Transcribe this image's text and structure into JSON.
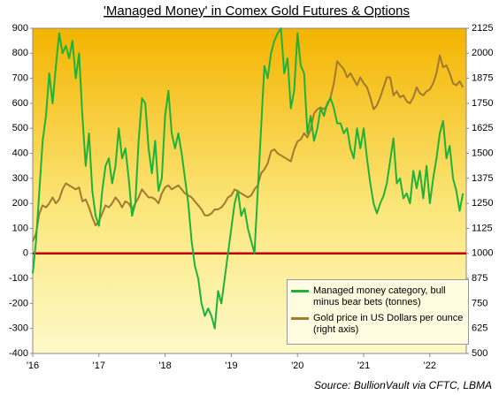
{
  "chart_data": {
    "type": "line",
    "title": "'Managed Money' in Comex Gold Futures & Options",
    "source": "Source: BullionVault via CFTC, LBMA",
    "x": [
      2016,
      2016.05,
      2016.1,
      2016.15,
      2016.2,
      2016.25,
      2016.3,
      2016.35,
      2016.4,
      2016.45,
      2016.5,
      2016.55,
      2016.6,
      2016.65,
      2016.7,
      2016.75,
      2016.8,
      2016.85,
      2016.9,
      2016.95,
      2017,
      2017.05,
      2017.1,
      2017.15,
      2017.2,
      2017.25,
      2017.3,
      2017.35,
      2017.4,
      2017.45,
      2017.5,
      2017.55,
      2017.6,
      2017.65,
      2017.7,
      2017.75,
      2017.8,
      2017.85,
      2017.9,
      2017.95,
      2018,
      2018.05,
      2018.1,
      2018.15,
      2018.2,
      2018.25,
      2018.3,
      2018.35,
      2018.4,
      2018.45,
      2018.5,
      2018.55,
      2018.6,
      2018.65,
      2018.7,
      2018.75,
      2018.8,
      2018.85,
      2018.9,
      2018.95,
      2019,
      2019.05,
      2019.1,
      2019.15,
      2019.2,
      2019.25,
      2019.3,
      2019.35,
      2019.4,
      2019.45,
      2019.5,
      2019.55,
      2019.6,
      2019.65,
      2019.7,
      2019.75,
      2019.8,
      2019.85,
      2019.9,
      2019.95,
      2020,
      2020.05,
      2020.1,
      2020.15,
      2020.2,
      2020.25,
      2020.3,
      2020.35,
      2020.4,
      2020.45,
      2020.5,
      2020.55,
      2020.6,
      2020.65,
      2020.7,
      2020.75,
      2020.8,
      2020.85,
      2020.9,
      2020.95,
      2021,
      2021.05,
      2021.1,
      2021.15,
      2021.2,
      2021.25,
      2021.3,
      2021.35,
      2021.4,
      2021.45,
      2021.5,
      2021.55,
      2021.6,
      2021.65,
      2021.7,
      2021.75,
      2021.8,
      2021.85,
      2021.9,
      2021.95,
      2022,
      2022.05,
      2022.1,
      2022.15,
      2022.2,
      2022.25,
      2022.3,
      2022.35,
      2022.4,
      2022.45,
      2022.5
    ],
    "series": [
      {
        "name": "Managed money category, bull minus bear bets (tonnes)",
        "color": "#1db33a",
        "values": [
          -80,
          50,
          250,
          450,
          550,
          720,
          600,
          750,
          880,
          800,
          830,
          780,
          850,
          700,
          800,
          550,
          350,
          480,
          250,
          150,
          110,
          250,
          350,
          380,
          280,
          350,
          500,
          380,
          420,
          300,
          150,
          200,
          450,
          620,
          600,
          420,
          320,
          450,
          250,
          300,
          550,
          650,
          480,
          420,
          480,
          400,
          300,
          200,
          50,
          -50,
          -100,
          -200,
          -250,
          -220,
          -250,
          -300,
          -150,
          -200,
          -100,
          0,
          100,
          200,
          250,
          150,
          180,
          100,
          50,
          0,
          250,
          500,
          750,
          700,
          800,
          850,
          880,
          900,
          720,
          780,
          580,
          650,
          880,
          750,
          720,
          480,
          550,
          450,
          500,
          580,
          550,
          600,
          620,
          580,
          520,
          520,
          480,
          500,
          420,
          380,
          500,
          420,
          500,
          380,
          280,
          200,
          160,
          200,
          230,
          280,
          370,
          460,
          280,
          300,
          220,
          240,
          200,
          330,
          260,
          330,
          220,
          350,
          200,
          300,
          380,
          480,
          530,
          380,
          430,
          300,
          250,
          170,
          240
        ]
      },
      {
        "name": "Gold price in US Dollars per ounce (right axis)",
        "color": "#a07a30",
        "axis": "y2",
        "values": [
          1060,
          1100,
          1200,
          1240,
          1230,
          1250,
          1280,
          1250,
          1270,
          1320,
          1350,
          1340,
          1330,
          1320,
          1330,
          1260,
          1270,
          1230,
          1180,
          1140,
          1160,
          1200,
          1240,
          1230,
          1250,
          1280,
          1260,
          1230,
          1260,
          1250,
          1220,
          1250,
          1280,
          1320,
          1300,
          1280,
          1280,
          1270,
          1250,
          1300,
          1330,
          1340,
          1320,
          1330,
          1340,
          1320,
          1300,
          1290,
          1280,
          1260,
          1240,
          1220,
          1190,
          1190,
          1200,
          1220,
          1220,
          1230,
          1250,
          1280,
          1290,
          1320,
          1310,
          1300,
          1290,
          1280,
          1290,
          1320,
          1340,
          1400,
          1420,
          1450,
          1510,
          1520,
          1500,
          1490,
          1480,
          1470,
          1460,
          1520,
          1560,
          1570,
          1600,
          1580,
          1620,
          1700,
          1720,
          1730,
          1720,
          1740,
          1780,
          1850,
          1960,
          1940,
          1920,
          1880,
          1900,
          1870,
          1840,
          1880,
          1850,
          1830,
          1780,
          1720,
          1740,
          1780,
          1830,
          1880,
          1880,
          1790,
          1810,
          1780,
          1790,
          1760,
          1750,
          1780,
          1830,
          1800,
          1790,
          1810,
          1820,
          1850,
          1900,
          1990,
          1930,
          1940,
          1900,
          1850,
          1840,
          1860,
          1830
        ]
      }
    ],
    "xlim": [
      2016,
      2022.55
    ],
    "xticks": [
      {
        "value": 2016,
        "label": "'16"
      },
      {
        "value": 2017,
        "label": "'17"
      },
      {
        "value": 2018,
        "label": "'18"
      },
      {
        "value": 2019,
        "label": "'19"
      },
      {
        "value": 2020,
        "label": "'20"
      },
      {
        "value": 2021,
        "label": "'21"
      },
      {
        "value": 2022,
        "label": "'22"
      }
    ],
    "ylim": [
      -400,
      900
    ],
    "yticks": [
      -400,
      -300,
      -200,
      -100,
      0,
      100,
      200,
      300,
      400,
      500,
      600,
      700,
      800,
      900
    ],
    "y2lim": [
      500,
      2125
    ],
    "y2ticks": [
      500,
      625,
      750,
      875,
      1000,
      1125,
      1250,
      1375,
      1500,
      1625,
      1750,
      1875,
      2000,
      2125
    ],
    "zero_line": {
      "value": 0,
      "color": "#c00000"
    },
    "legend": "bottom-right"
  }
}
